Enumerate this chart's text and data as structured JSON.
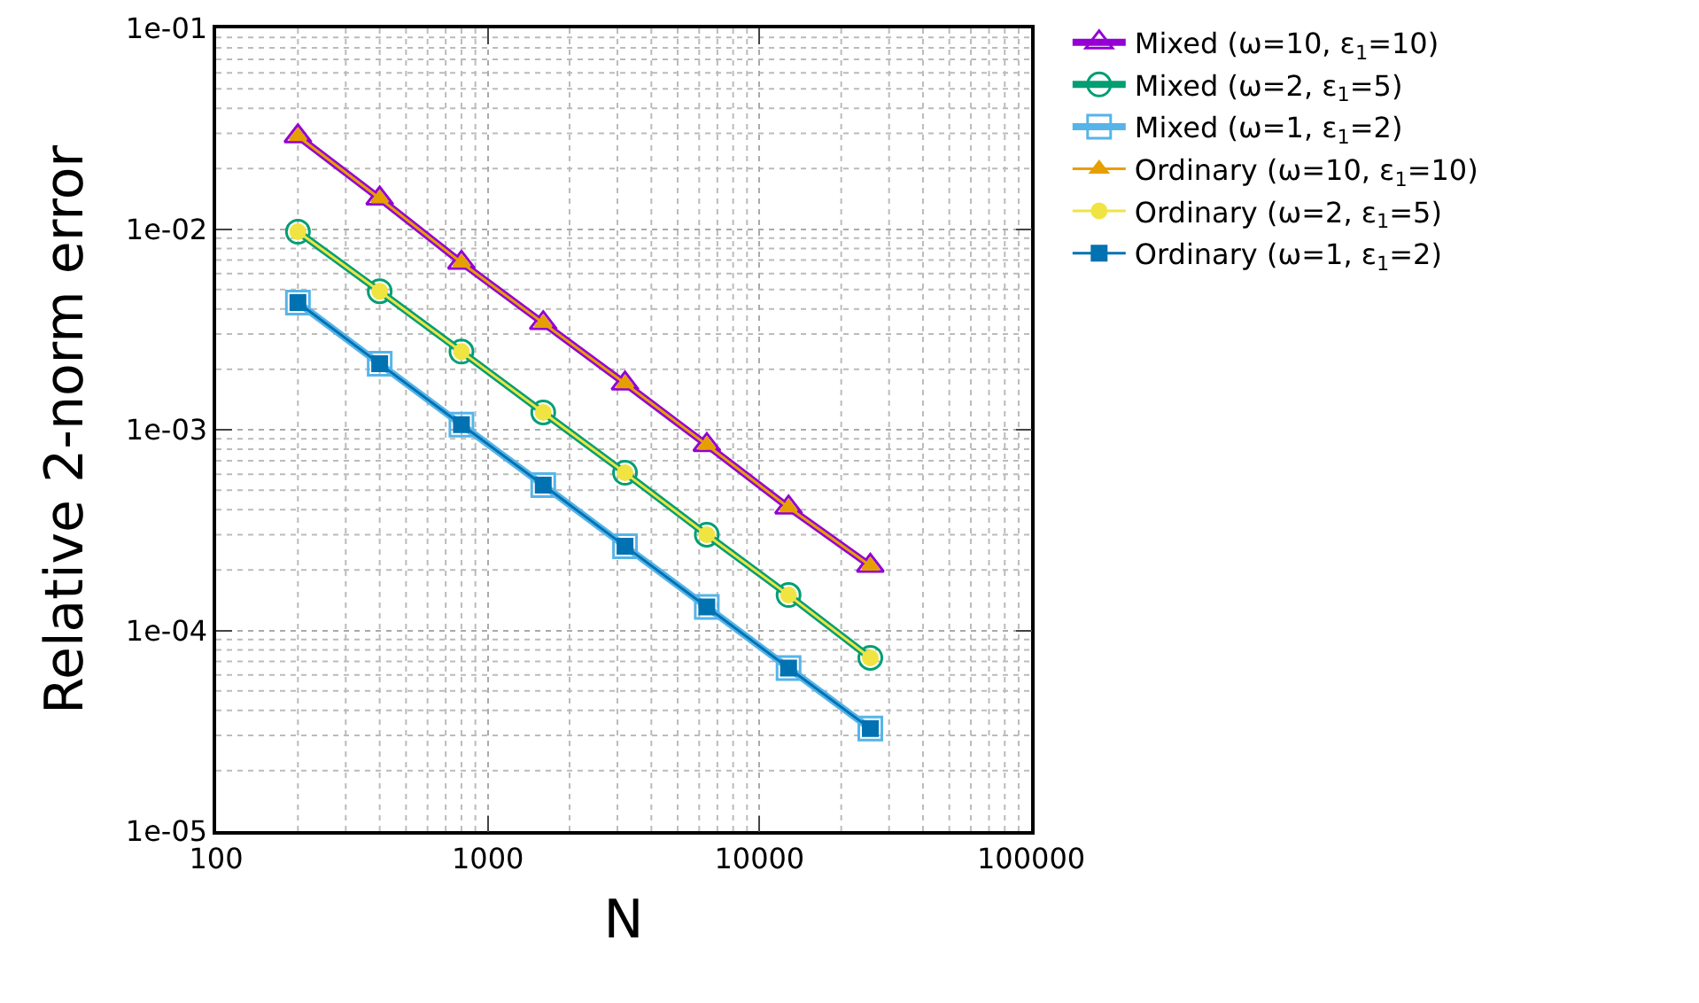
{
  "chart_data": {
    "type": "line",
    "xlabel": "N",
    "ylabel": "Relative 2-norm error",
    "log": "xy",
    "grid": true,
    "legend": "top right",
    "line_style": "solid",
    "x": [
      200,
      400,
      800,
      1600,
      3200,
      6400,
      12800,
      25600
    ],
    "xlim": [
      100,
      100000
    ],
    "xticks": [
      100,
      1000,
      10000,
      100000
    ],
    "ylim": [
      1e-05,
      0.1
    ],
    "yticks": [
      {
        "value": 1e-05,
        "label": "1e-05"
      },
      {
        "value": 0.0001,
        "label": "1e-04"
      },
      {
        "value": 0.001,
        "label": "1e-03"
      },
      {
        "value": 0.01,
        "label": "1e-02"
      },
      {
        "value": 0.1,
        "label": "1e-01"
      }
    ],
    "series": [
      {
        "name": "Mixed (ω=10, ε$_{1}$=10)",
        "color": "#9400d3",
        "marker": "triangle-open",
        "values": [
          0.029,
          0.0142,
          0.0068,
          0.0034,
          0.0017,
          0.00084,
          0.00041,
          0.00021
        ]
      },
      {
        "name": "Mixed (ω=2, ε$_{1}$=5)",
        "color": "#009e73",
        "marker": "circle-open",
        "values": [
          0.0097,
          0.0049,
          0.00245,
          0.00122,
          0.00061,
          0.0003,
          0.00015,
          7.3e-05
        ]
      },
      {
        "name": "Mixed (ω=1, ε$_{1}$=2)",
        "color": "#56b4e9",
        "marker": "square-open",
        "values": [
          0.0043,
          0.00213,
          0.00106,
          0.00053,
          0.000263,
          0.000131,
          6.5e-05,
          3.24e-05
        ]
      },
      {
        "name": "Ordinary (ω=10, ε$_{1}$=10)",
        "color": "#e69f00",
        "marker": "triangle",
        "values": [
          0.029,
          0.0142,
          0.0068,
          0.0034,
          0.0017,
          0.00084,
          0.00041,
          0.00021
        ]
      },
      {
        "name": "Ordinary (ω=2, ε$_{1}$=5)",
        "color": "#f0e442",
        "marker": "circle",
        "values": [
          0.0097,
          0.0049,
          0.00245,
          0.00122,
          0.00061,
          0.0003,
          0.00015,
          7.3e-05
        ]
      },
      {
        "name": "Ordinary (ω=1, ε$_{1}$=2)",
        "color": "#0072b2",
        "marker": "square",
        "values": [
          0.0043,
          0.00213,
          0.00106,
          0.00053,
          0.000263,
          0.000131,
          6.5e-05,
          3.24e-05
        ]
      }
    ]
  }
}
